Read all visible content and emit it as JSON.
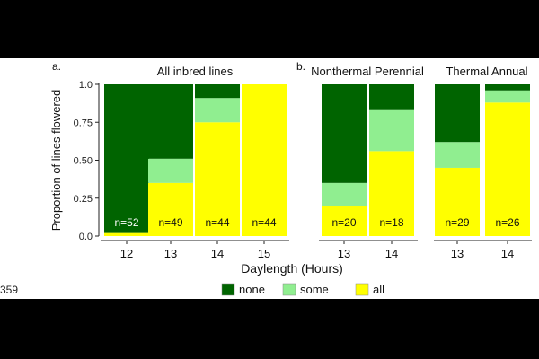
{
  "line_number": "359",
  "x_axis_title": "Daylength (Hours)",
  "y_axis_title": "Proportion of lines flowered",
  "colors": {
    "none": "#006400",
    "some": "#90EE90",
    "all": "#FFFF00"
  },
  "legend": [
    {
      "key": "none",
      "label": "none"
    },
    {
      "key": "some",
      "label": "some"
    },
    {
      "key": "all",
      "label": "all"
    }
  ],
  "chart_data": [
    {
      "type": "bar",
      "stacked": true,
      "panel_label": "a.",
      "title": "All inbred lines",
      "categories": [
        "12",
        "13",
        "14",
        "15"
      ],
      "counts": [
        "n=52",
        "n=49",
        "n=44",
        "n=44"
      ],
      "series": [
        {
          "name": "all",
          "values": [
            0.02,
            0.35,
            0.75,
            1.0
          ]
        },
        {
          "name": "some",
          "values": [
            0.0,
            0.16,
            0.16,
            0.0
          ]
        },
        {
          "name": "none",
          "values": [
            0.98,
            0.49,
            0.09,
            0.0
          ]
        }
      ],
      "yticks": [
        "0.0",
        "0.25",
        "0.50",
        "0.75",
        "1.0"
      ],
      "ylim": [
        0,
        1
      ]
    },
    {
      "type": "bar",
      "stacked": true,
      "panel_label": "b.",
      "title": "Nonthermal Perennial",
      "categories": [
        "13",
        "14"
      ],
      "counts": [
        "n=20",
        "n=18"
      ],
      "series": [
        {
          "name": "all",
          "values": [
            0.2,
            0.56
          ]
        },
        {
          "name": "some",
          "values": [
            0.15,
            0.27
          ]
        },
        {
          "name": "none",
          "values": [
            0.65,
            0.17
          ]
        }
      ],
      "ylim": [
        0,
        1
      ]
    },
    {
      "type": "bar",
      "stacked": true,
      "title": "Thermal Annual",
      "categories": [
        "13",
        "14"
      ],
      "counts": [
        "n=29",
        "n=26"
      ],
      "series": [
        {
          "name": "all",
          "values": [
            0.45,
            0.88
          ]
        },
        {
          "name": "some",
          "values": [
            0.17,
            0.08
          ]
        },
        {
          "name": "none",
          "values": [
            0.38,
            0.04
          ]
        }
      ],
      "ylim": [
        0,
        1
      ]
    }
  ]
}
